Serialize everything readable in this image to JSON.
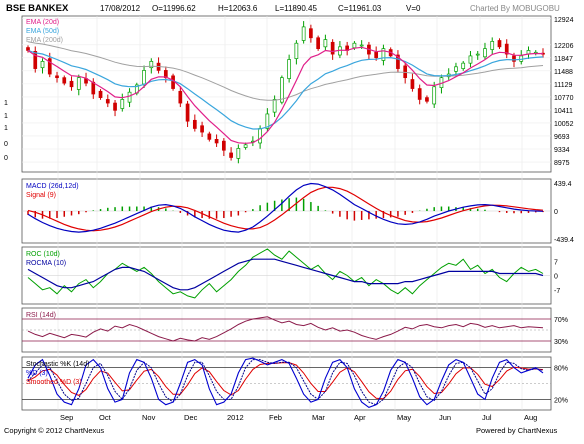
{
  "header": {
    "symbol": "BSE BANKEX",
    "date": "17/08/2012",
    "open": "O=11996.62",
    "high": "H=12063.6",
    "low": "L=11890.45",
    "close": "C=11961.03",
    "volume": "V=0",
    "credit": "Charted By MOBUGOBU"
  },
  "footer": {
    "copyright": "Copyright © 2012 ChartNexus",
    "powered": "Powered by ChartNexus"
  },
  "colors": {
    "up": "#00a000",
    "down": "#d00000",
    "ema20": "#e0208a",
    "ema50": "#3aa6dd",
    "ema200": "#a0a0a0",
    "macd": "#0000c0",
    "signal": "#e00000",
    "roc": "#00a000",
    "rocma": "#0000a0",
    "rsi": "#8b1a4a",
    "pctk": "#0000d0",
    "pctd": "#00008b",
    "smoothd": "#e00000"
  },
  "chart_data": [
    {
      "type": "candlestick",
      "title": "BSE BANKEX",
      "legend": [
        "EMA (20d)",
        "EMA (50d)",
        "EMA (200d)"
      ],
      "y_ticks": [
        "12924",
        "12206",
        "11847",
        "11488",
        "11129",
        "10770",
        "10411",
        "10052",
        "9693",
        "9334",
        "8975"
      ],
      "left_marks": [
        "1",
        "1",
        "1",
        "0",
        "0"
      ],
      "ylim": [
        8700,
        13000
      ],
      "x_labels": [
        "Sep",
        "Oct",
        "Nov",
        "Dec",
        "2012",
        "Feb",
        "Mar",
        "Apr",
        "May",
        "Jun",
        "Jul",
        "Aug"
      ],
      "close_approx": [
        12050,
        11550,
        11750,
        11400,
        11300,
        11150,
        11050,
        11300,
        11150,
        10850,
        10750,
        10600,
        10400,
        10700,
        10900,
        11100,
        11500,
        11750,
        11500,
        11300,
        11000,
        10600,
        10100,
        9900,
        9800,
        9600,
        9500,
        9300,
        9100,
        9350,
        9450,
        9550,
        9900,
        10300,
        10700,
        11300,
        11800,
        12250,
        12700,
        12400,
        12100,
        12350,
        11950,
        12150,
        12050,
        12250,
        12200,
        11950,
        11850,
        12100,
        11900,
        11550,
        11300,
        11000,
        10700,
        10650,
        11050,
        11300,
        11400,
        11600,
        11700,
        11900,
        11950,
        12100,
        12300,
        12150,
        11950,
        11750,
        11900,
        12050,
        12000,
        11961
      ]
    },
    {
      "type": "line",
      "title": "MACD (26d,12d)",
      "series": [
        {
          "name": "MACD (26d,12d)"
        },
        {
          "name": "Signal (9)"
        }
      ],
      "y_ticks": [
        "439.4",
        "0",
        "-439.4"
      ],
      "macd_approx": [
        -50,
        -120,
        -180,
        -230,
        -270,
        -300,
        -320,
        -330,
        -320,
        -300,
        -270,
        -230,
        -190,
        -140,
        -90,
        -40,
        10,
        60,
        90,
        100,
        80,
        40,
        -20,
        -90,
        -150,
        -210,
        -260,
        -300,
        -320,
        -330,
        -300,
        -250,
        -170,
        -80,
        20,
        120,
        230,
        330,
        400,
        430,
        420,
        380,
        330,
        260,
        180,
        100,
        40,
        -20,
        -80,
        -130,
        -170,
        -200,
        -210,
        -200,
        -170,
        -130,
        -80,
        -40,
        0,
        30,
        60,
        80,
        95,
        100,
        90,
        70,
        50,
        30,
        15,
        5,
        0,
        -5
      ],
      "signal_approx": [
        10,
        -20,
        -60,
        -110,
        -160,
        -210,
        -250,
        -280,
        -300,
        -310,
        -300,
        -280,
        -250,
        -210,
        -160,
        -110,
        -60,
        -10,
        30,
        60,
        75,
        70,
        50,
        10,
        -40,
        -90,
        -140,
        -190,
        -230,
        -260,
        -280,
        -280,
        -260,
        -210,
        -140,
        -60,
        30,
        120,
        210,
        290,
        340,
        370,
        370,
        350,
        310,
        250,
        180,
        110,
        40,
        -20,
        -70,
        -110,
        -150,
        -170,
        -175,
        -165,
        -140,
        -110,
        -70,
        -30,
        5,
        35,
        60,
        80,
        90,
        88,
        80,
        65,
        50,
        35,
        22,
        12
      ]
    },
    {
      "type": "line",
      "title": "ROC (10d)",
      "series": [
        {
          "name": "ROC (10d)"
        },
        {
          "name": "ROCMA (10)"
        }
      ],
      "y_ticks": [
        "7",
        "0",
        "-7"
      ],
      "roc_approx": [
        -1,
        -4,
        -7,
        -6,
        -9,
        -5,
        -8,
        -4,
        -2,
        -6,
        -3,
        1,
        3,
        6,
        4,
        2,
        4,
        1,
        -3,
        -6,
        -9,
        -8,
        -10,
        -11,
        -7,
        -4,
        -8,
        -5,
        -2,
        2,
        5,
        9,
        11,
        13,
        10,
        8,
        12,
        9,
        6,
        3,
        5,
        1,
        -2,
        2,
        0,
        -3,
        -1,
        -5,
        -2,
        -4,
        -7,
        -9,
        -6,
        -9,
        -5,
        -2,
        1,
        4,
        6,
        5,
        8,
        3,
        5,
        1,
        3,
        -1,
        -3,
        1,
        4,
        2,
        3,
        1
      ],
      "rocma_approx": [
        3,
        1,
        -1,
        -3,
        -5,
        -6,
        -6,
        -5,
        -4,
        -3,
        -1,
        1,
        3,
        4,
        4,
        3,
        2,
        0,
        -2,
        -4,
        -6,
        -7,
        -7,
        -6,
        -4,
        -2,
        0,
        2,
        4,
        6,
        7,
        8,
        8,
        8,
        8,
        7,
        6,
        5,
        4,
        3,
        2,
        1,
        0,
        -1,
        -2,
        -3,
        -3,
        -4,
        -4,
        -4,
        -4,
        -4,
        -3,
        -3,
        -2,
        -1,
        0,
        1,
        2,
        2,
        2,
        2,
        2,
        2,
        2,
        1,
        1,
        1,
        1,
        1,
        1,
        0
      ]
    },
    {
      "type": "line",
      "title": "RSI (14d)",
      "series": [
        {
          "name": "RSI (14d)"
        }
      ],
      "y_ticks": [
        "70%",
        "30%"
      ],
      "rsi_approx": [
        48,
        42,
        38,
        44,
        40,
        36,
        42,
        40,
        37,
        46,
        52,
        48,
        57,
        54,
        60,
        56,
        50,
        44,
        38,
        34,
        30,
        35,
        32,
        30,
        36,
        33,
        38,
        45,
        52,
        60,
        66,
        70,
        72,
        74,
        68,
        63,
        66,
        60,
        58,
        62,
        55,
        50,
        54,
        48,
        50,
        46,
        40,
        36,
        33,
        38,
        42,
        48,
        55,
        52,
        58,
        60,
        56,
        54,
        58,
        60,
        56,
        62,
        60,
        55,
        58,
        54,
        56,
        58,
        54,
        56,
        55,
        54
      ]
    },
    {
      "type": "line",
      "title": "Stochastic %K (14d)",
      "series": [
        {
          "name": "Stochastic %K (14d)"
        },
        {
          "name": "%D (3)"
        },
        {
          "name": "Smoothed %D (3)"
        }
      ],
      "y_ticks": [
        "80%",
        "20%"
      ],
      "k_approx": [
        60,
        85,
        95,
        65,
        30,
        15,
        10,
        40,
        85,
        95,
        80,
        40,
        15,
        20,
        70,
        95,
        90,
        60,
        20,
        10,
        15,
        50,
        90,
        95,
        85,
        40,
        10,
        15,
        30,
        70,
        95,
        98,
        92,
        85,
        90,
        95,
        88,
        60,
        30,
        15,
        20,
        60,
        90,
        95,
        80,
        40,
        15,
        5,
        10,
        35,
        75,
        95,
        90,
        60,
        25,
        10,
        20,
        55,
        85,
        95,
        90,
        60,
        30,
        20,
        60,
        90,
        95,
        80,
        70,
        75,
        80,
        70
      ],
      "d_approx": [
        55,
        70,
        85,
        80,
        55,
        30,
        18,
        22,
        50,
        80,
        88,
        65,
        35,
        20,
        40,
        75,
        90,
        80,
        50,
        25,
        15,
        30,
        65,
        90,
        90,
        65,
        35,
        20,
        20,
        45,
        80,
        95,
        95,
        90,
        88,
        90,
        90,
        80,
        55,
        30,
        20,
        35,
        70,
        90,
        88,
        65,
        35,
        15,
        10,
        20,
        50,
        80,
        90,
        80,
        50,
        25,
        18,
        35,
        65,
        88,
        90,
        80,
        55,
        30,
        40,
        70,
        90,
        88,
        78,
        75,
        78,
        75
      ]
    }
  ]
}
